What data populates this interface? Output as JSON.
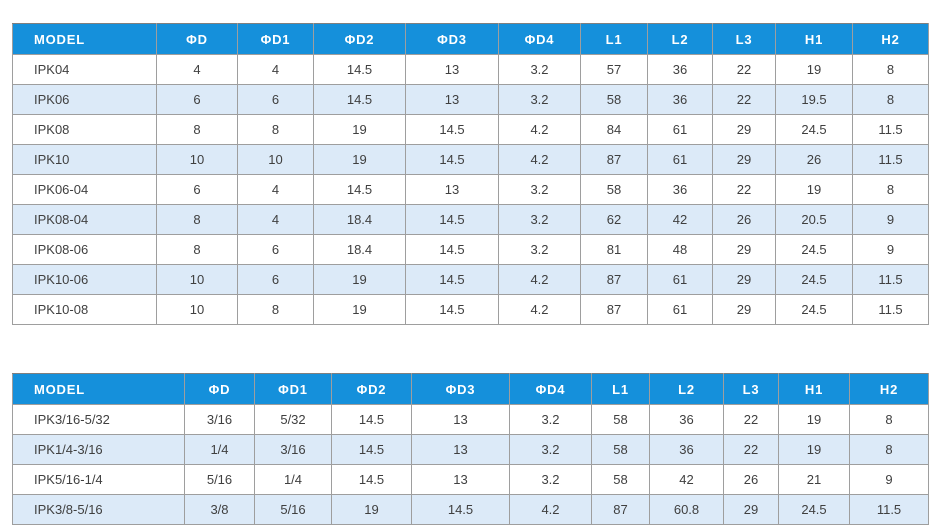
{
  "colors": {
    "header_bg": "#1590DB",
    "header_text": "#FFFFFF",
    "zebra_row_bg": "#DCEAF8",
    "row_bg": "#FFFFFF",
    "grid_border": "#9E9E9E",
    "outer_border": "#7F7F7F",
    "body_text": "#3F3F3F"
  },
  "tables": [
    {
      "name": "metric-models",
      "columns": [
        "MODEL",
        "ΦD",
        "ΦD1",
        "ΦD2",
        "ΦD3",
        "ΦD4",
        "L1",
        "L2",
        "L3",
        "H1",
        "H2"
      ],
      "rows": [
        [
          "IPK04",
          "4",
          "4",
          "14.5",
          "13",
          "3.2",
          "57",
          "36",
          "22",
          "19",
          "8"
        ],
        [
          "IPK06",
          "6",
          "6",
          "14.5",
          "13",
          "3.2",
          "58",
          "36",
          "22",
          "19.5",
          "8"
        ],
        [
          "IPK08",
          "8",
          "8",
          "19",
          "14.5",
          "4.2",
          "84",
          "61",
          "29",
          "24.5",
          "11.5"
        ],
        [
          "IPK10",
          "10",
          "10",
          "19",
          "14.5",
          "4.2",
          "87",
          "61",
          "29",
          "26",
          "11.5"
        ],
        [
          "IPK06-04",
          "6",
          "4",
          "14.5",
          "13",
          "3.2",
          "58",
          "36",
          "22",
          "19",
          "8"
        ],
        [
          "IPK08-04",
          "8",
          "4",
          "18.4",
          "14.5",
          "3.2",
          "62",
          "42",
          "26",
          "20.5",
          "9"
        ],
        [
          "IPK08-06",
          "8",
          "6",
          "18.4",
          "14.5",
          "3.2",
          "81",
          "48",
          "29",
          "24.5",
          "9"
        ],
        [
          "IPK10-06",
          "10",
          "6",
          "19",
          "14.5",
          "4.2",
          "87",
          "61",
          "29",
          "24.5",
          "11.5"
        ],
        [
          "IPK10-08",
          "10",
          "8",
          "19",
          "14.5",
          "4.2",
          "87",
          "61",
          "29",
          "24.5",
          "11.5"
        ]
      ]
    },
    {
      "name": "inch-models",
      "columns": [
        "MODEL",
        "ΦD",
        "ΦD1",
        "ΦD2",
        "ΦD3",
        "ΦD4",
        "L1",
        "L2",
        "L3",
        "H1",
        "H2"
      ],
      "rows": [
        [
          "IPK3/16-5/32",
          "3/16",
          "5/32",
          "14.5",
          "13",
          "3.2",
          "58",
          "36",
          "22",
          "19",
          "8"
        ],
        [
          "IPK1/4-3/16",
          "1/4",
          "3/16",
          "14.5",
          "13",
          "3.2",
          "58",
          "36",
          "22",
          "19",
          "8"
        ],
        [
          "IPK5/16-1/4",
          "5/16",
          "1/4",
          "14.5",
          "13",
          "3.2",
          "58",
          "42",
          "26",
          "21",
          "9"
        ],
        [
          "IPK3/8-5/16",
          "3/8",
          "5/16",
          "19",
          "14.5",
          "4.2",
          "87",
          "60.8",
          "29",
          "24.5",
          "11.5"
        ]
      ]
    }
  ]
}
